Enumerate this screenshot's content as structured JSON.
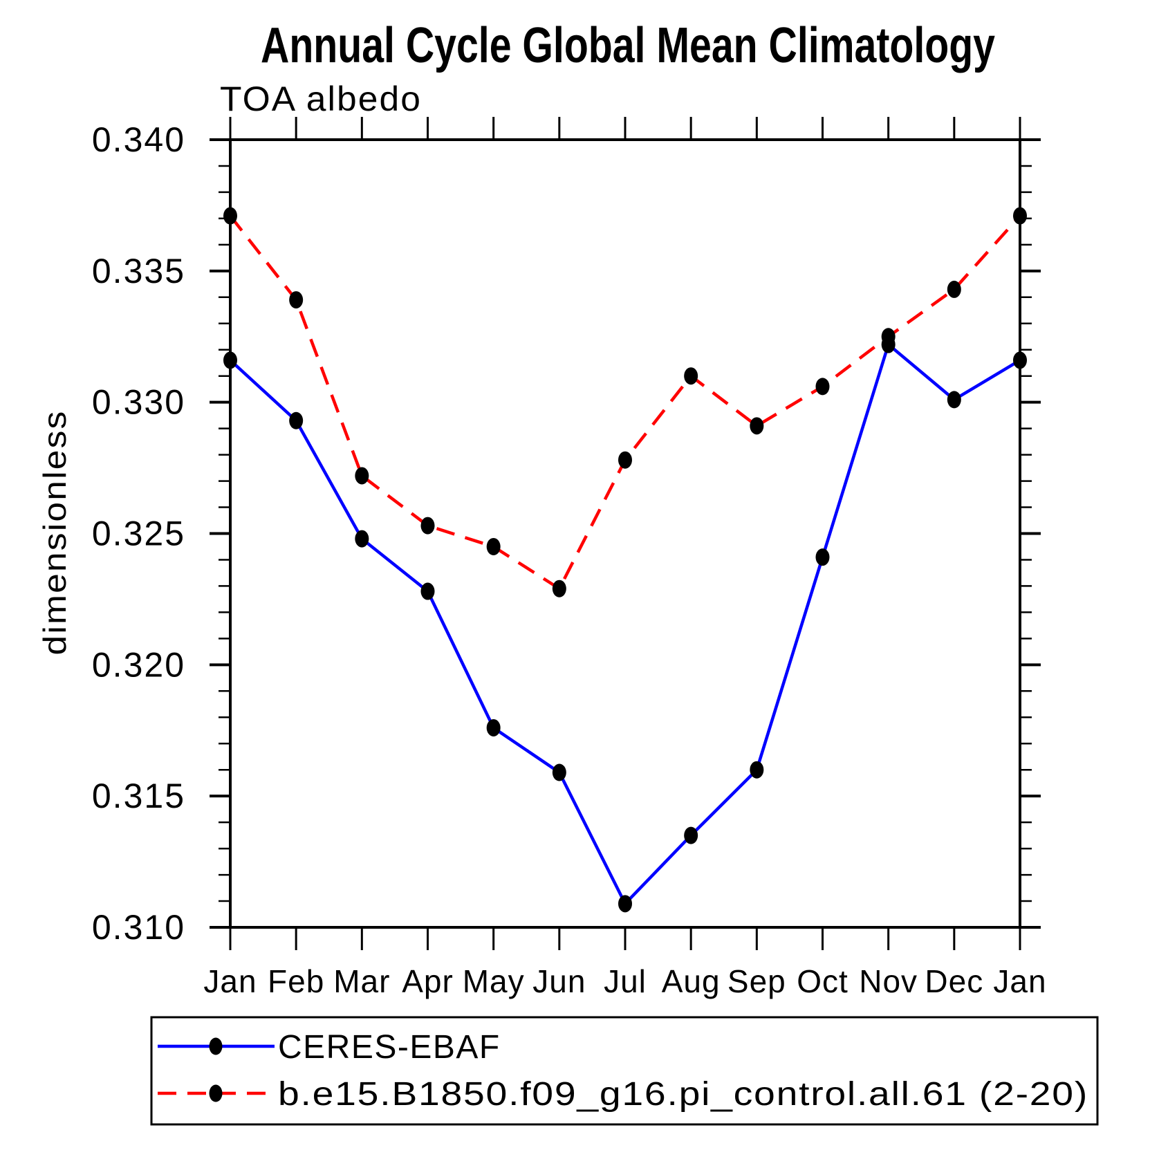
{
  "title": "Annual Cycle Global Mean Climatology",
  "subtitle": "TOA albedo",
  "y_axis_label": "dimensionless",
  "colors": {
    "axis": "#000000",
    "marker": "#000000",
    "ceres_line": "#0000ff",
    "model_line": "#ff0000",
    "background": "#ffffff"
  },
  "legend": {
    "entries": [
      {
        "label": "CERES-EBAF",
        "line_style": "solid",
        "color": "#0000ff",
        "marker": "filled-circle"
      },
      {
        "label": "b.e15.B1850.f09_g16.pi_control.all.61 (2-20)",
        "line_style": "dashed",
        "color": "#ff0000",
        "marker": "filled-circle"
      }
    ],
    "position": "bottom",
    "border": true
  },
  "chart_data": {
    "type": "line",
    "title": "Annual Cycle Global Mean Climatology",
    "subtitle": "TOA albedo",
    "xlabel": "",
    "ylabel": "dimensionless",
    "categories": [
      "Jan",
      "Feb",
      "Mar",
      "Apr",
      "May",
      "Jun",
      "Jul",
      "Aug",
      "Sep",
      "Oct",
      "Nov",
      "Dec",
      "Jan"
    ],
    "series": [
      {
        "name": "CERES-EBAF",
        "color": "#0000ff",
        "line_style": "solid",
        "marker": "filled-circle",
        "values": [
          0.3316,
          0.3293,
          0.3248,
          0.3228,
          0.3176,
          0.3159,
          0.3109,
          0.3135,
          0.316,
          0.3241,
          0.3322,
          0.3301,
          0.3316
        ]
      },
      {
        "name": "b.e15.B1850.f09_g16.pi_control.all.61 (2-20)",
        "color": "#ff0000",
        "line_style": "dashed",
        "marker": "filled-circle",
        "values": [
          0.3371,
          0.3339,
          0.3272,
          0.3253,
          0.3245,
          0.3229,
          0.3278,
          0.331,
          0.3291,
          0.3306,
          0.3325,
          0.3343,
          0.3371
        ]
      }
    ],
    "ylim": [
      0.31,
      0.34
    ],
    "ytick_step": 0.005,
    "ytick_minor_step": 0.001,
    "ytick_labels": [
      "0.310",
      "0.315",
      "0.320",
      "0.325",
      "0.330",
      "0.335",
      "0.340"
    ],
    "grid": false,
    "legend_position": "bottom"
  }
}
